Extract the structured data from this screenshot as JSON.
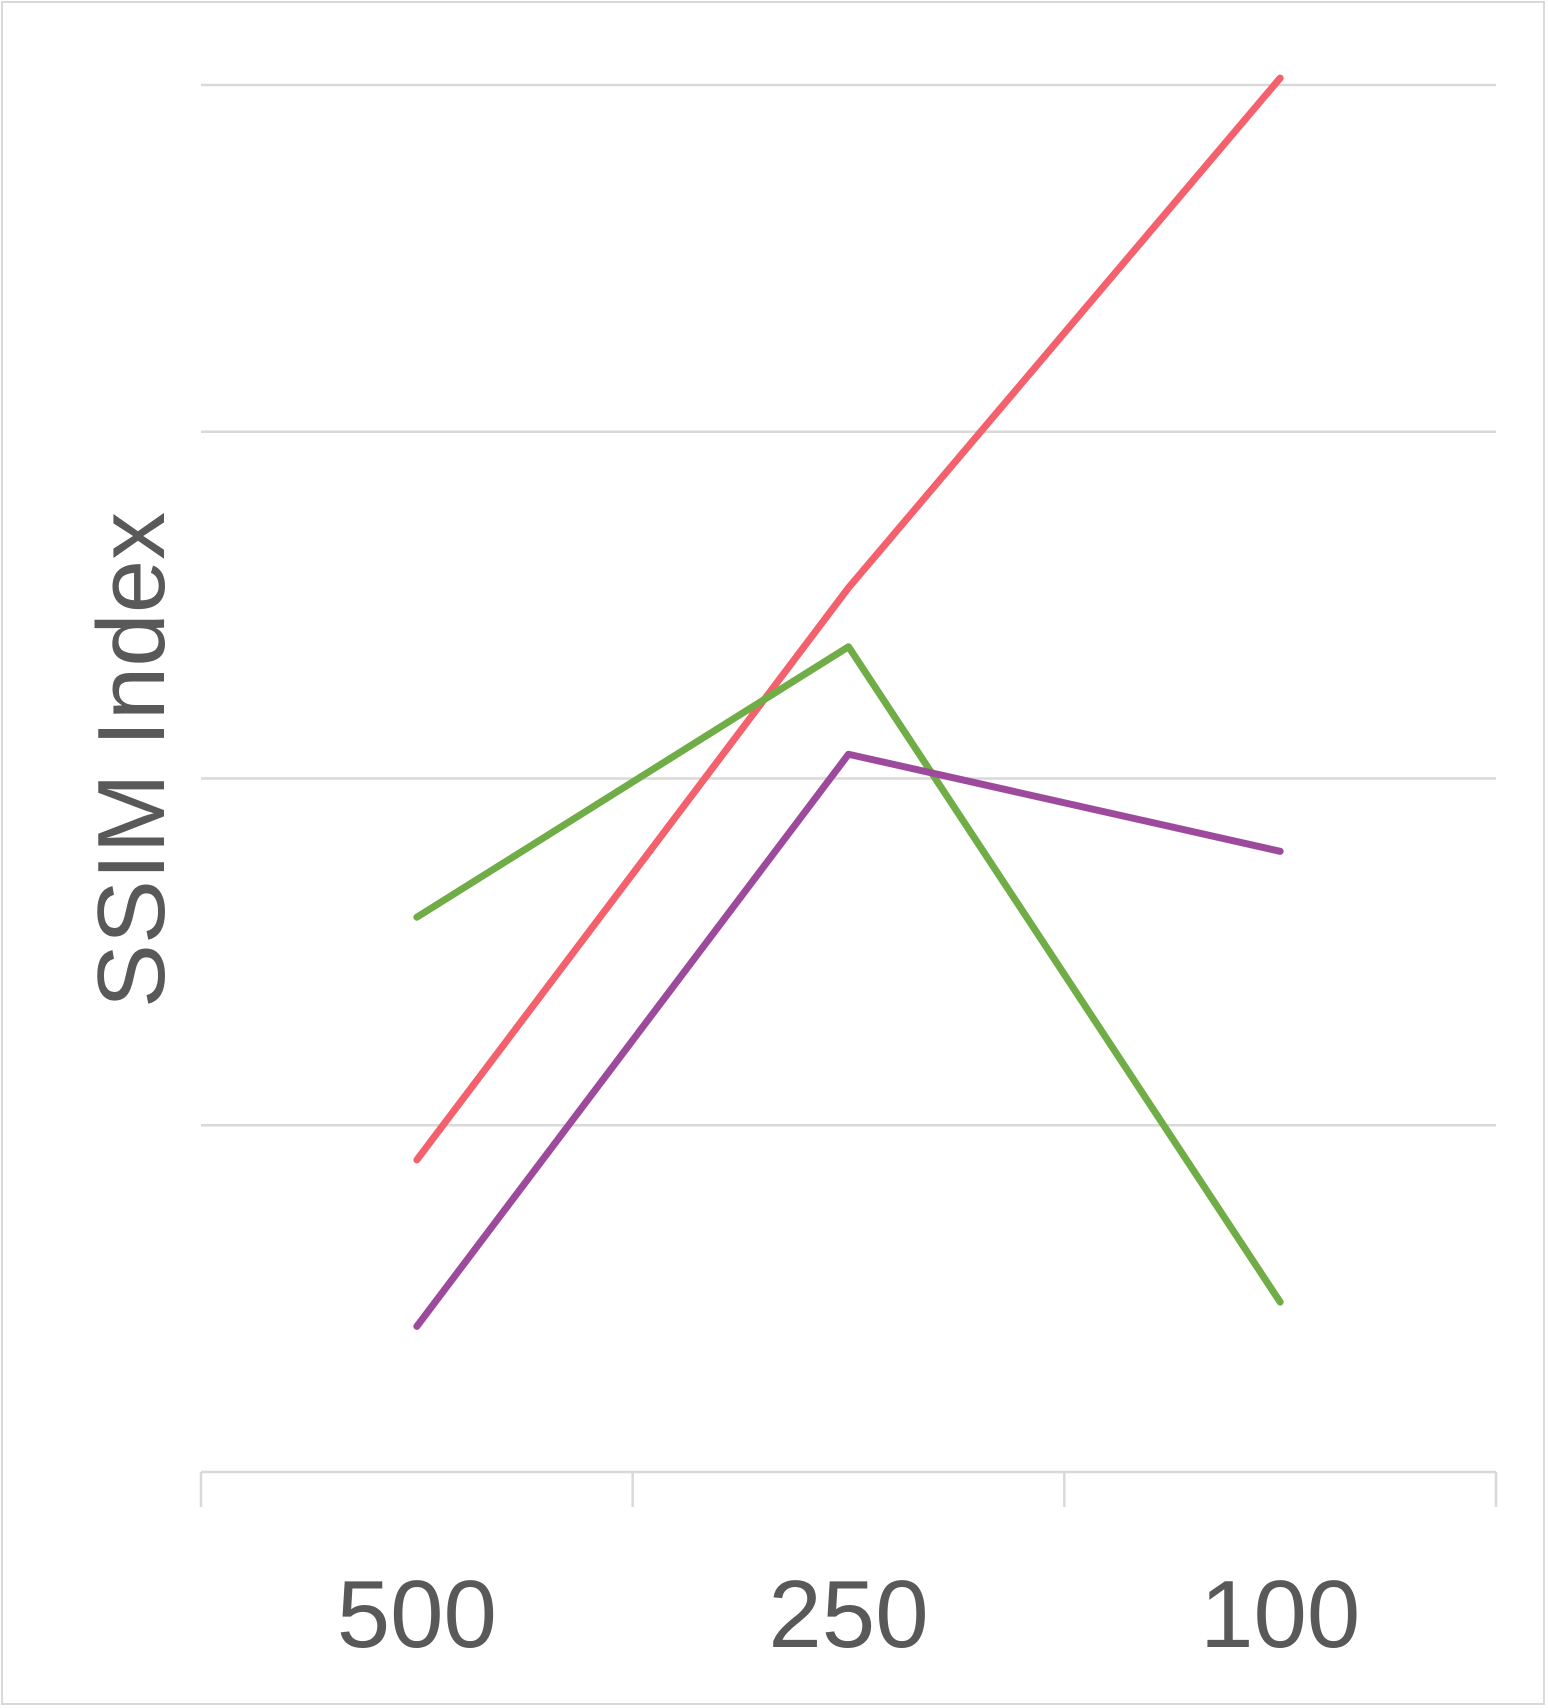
{
  "chart_data": {
    "type": "line",
    "title": "",
    "xlabel": "",
    "ylabel": "SSIM Index",
    "categories": [
      "500",
      "250",
      "100"
    ],
    "ylim": [
      0,
      4
    ],
    "y_tick_labels_shown": false,
    "grid": true,
    "legend": "none",
    "series": [
      {
        "color": "#f4606c",
        "values": [
          0.9,
          2.55,
          4.02
        ]
      },
      {
        "color": "#70ad47",
        "values": [
          1.6,
          2.38,
          0.49
        ]
      },
      {
        "color": "#9e4a9c",
        "values": [
          0.42,
          2.07,
          1.79
        ]
      }
    ]
  }
}
